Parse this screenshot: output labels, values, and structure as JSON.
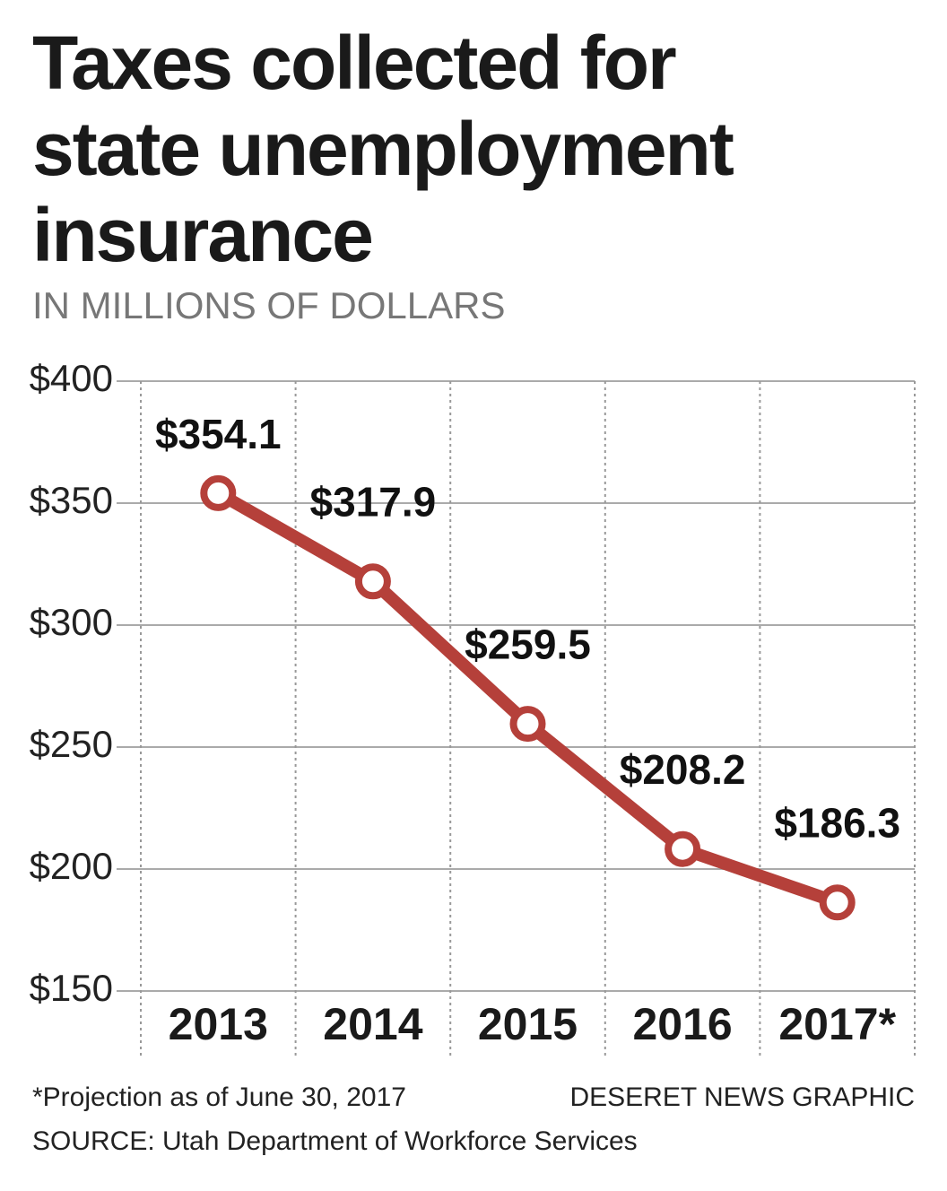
{
  "chart_data": {
    "type": "line",
    "title": "Taxes collected for state unemployment insurance",
    "subtitle": "IN MILLIONS OF DOLLARS",
    "categories": [
      "2013",
      "2014",
      "2015",
      "2016",
      "2017*"
    ],
    "values": [
      354.1,
      317.9,
      259.5,
      208.2,
      186.3
    ],
    "value_labels": [
      "$354.1",
      "$317.9",
      "$259.5",
      "$208.2",
      "$186.3"
    ],
    "color": "#b5403a",
    "ylim": [
      150,
      400
    ],
    "yticks": [
      {
        "value": 150,
        "label": "$150"
      },
      {
        "value": 200,
        "label": "$200"
      },
      {
        "value": 250,
        "label": "$250"
      },
      {
        "value": 300,
        "label": "$300"
      },
      {
        "value": 350,
        "label": "$350"
      },
      {
        "value": 400,
        "label": "$400"
      }
    ],
    "grid": true,
    "note": "*Projection as of June 30, 2017",
    "source": "SOURCE: Utah Department of Workforce Services",
    "credit": "DESERET NEWS GRAPHIC"
  }
}
